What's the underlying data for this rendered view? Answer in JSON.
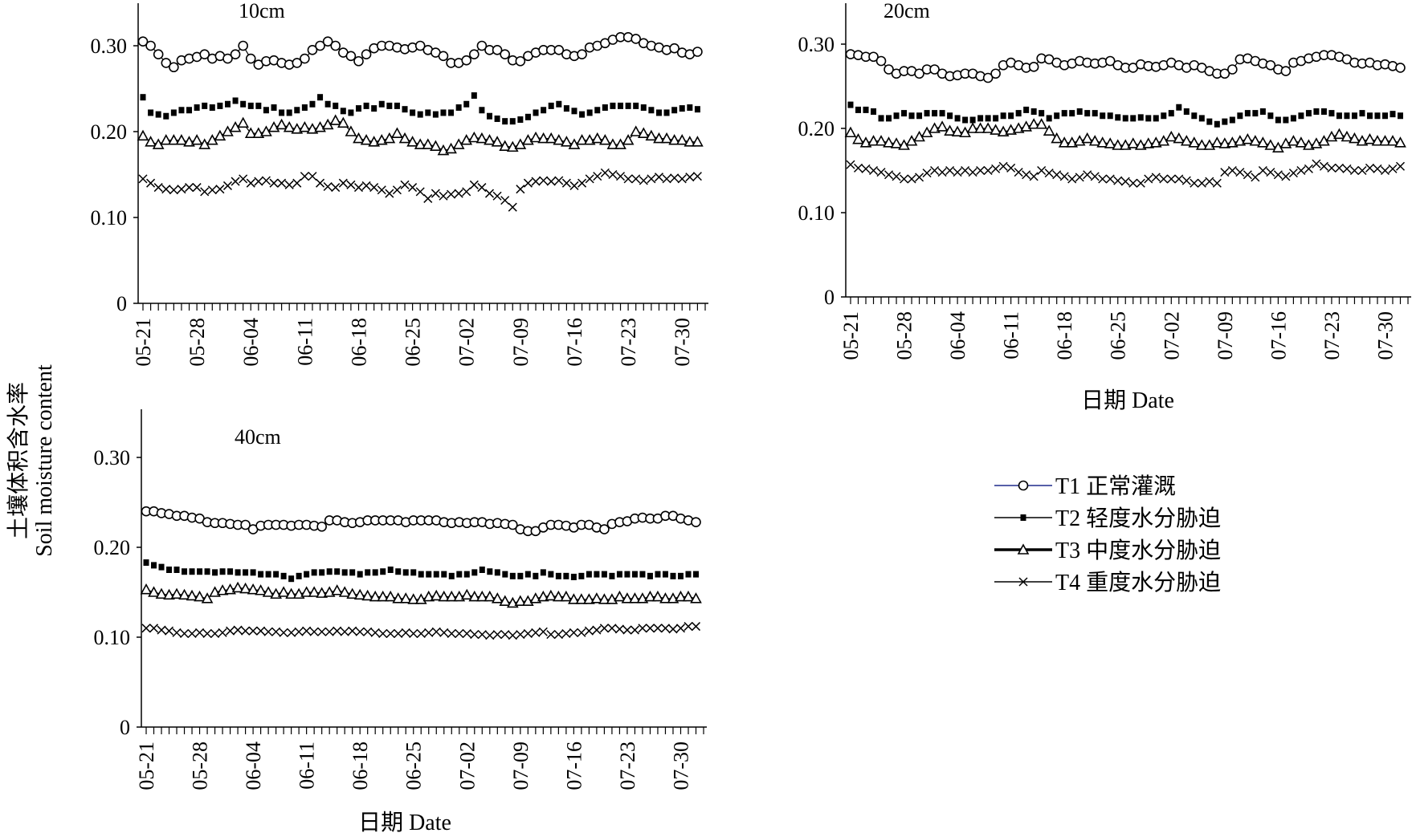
{
  "figure": {
    "ylabel_cn": "土壤体积含水率",
    "ylabel_en": "Soil moisture content",
    "xlabel": "日期 Date"
  },
  "legend": [
    {
      "key": "T1",
      "label": "T1 正常灌溉",
      "marker": "circle",
      "line_color": "#1f2a8c"
    },
    {
      "key": "T2",
      "label": "T2 轻度水分胁迫",
      "marker": "square",
      "line_color": "#000000"
    },
    {
      "key": "T3",
      "label": "T3 中度水分胁迫",
      "marker": "triangle",
      "line_color": "#000000"
    },
    {
      "key": "T4",
      "label": "T4 重度水分胁迫",
      "marker": "cross",
      "line_color": "#000000"
    }
  ],
  "chart_data": [
    {
      "type": "line",
      "title": "10cm",
      "xlabel": "",
      "x_tick_labels": [
        "05-21",
        "05-28",
        "06-04",
        "06-11",
        "06-18",
        "06-25",
        "07-02",
        "07-09",
        "07-16",
        "07-23",
        "07-30"
      ],
      "y_tick_labels": [
        "0",
        "0.10",
        "0.20",
        "0.30"
      ],
      "ylim": [
        0,
        0.35
      ],
      "x_range_days": [
        0,
        73
      ],
      "series": [
        {
          "name": "T1 正常灌溉",
          "key": "T1",
          "values": [
            0.305,
            0.3,
            0.29,
            0.28,
            0.275,
            0.283,
            0.285,
            0.287,
            0.29,
            0.285,
            0.288,
            0.285,
            0.29,
            0.3,
            0.285,
            0.278,
            0.282,
            0.283,
            0.28,
            0.278,
            0.28,
            0.285,
            0.295,
            0.3,
            0.305,
            0.3,
            0.292,
            0.288,
            0.282,
            0.29,
            0.297,
            0.3,
            0.3,
            0.298,
            0.296,
            0.298,
            0.3,
            0.295,
            0.292,
            0.288,
            0.28,
            0.28,
            0.283,
            0.29,
            0.3,
            0.295,
            0.295,
            0.29,
            0.283,
            0.282,
            0.288,
            0.292,
            0.295,
            0.295,
            0.295,
            0.29,
            0.288,
            0.29,
            0.298,
            0.3,
            0.303,
            0.307,
            0.31,
            0.31,
            0.308,
            0.303,
            0.3,
            0.298,
            0.295,
            0.297,
            0.292,
            0.29,
            0.293
          ]
        },
        {
          "name": "T2 轻度水分胁迫",
          "key": "T2",
          "values": [
            0.24,
            0.222,
            0.22,
            0.218,
            0.222,
            0.225,
            0.225,
            0.228,
            0.23,
            0.228,
            0.23,
            0.232,
            0.236,
            0.232,
            0.23,
            0.23,
            0.225,
            0.228,
            0.222,
            0.222,
            0.225,
            0.228,
            0.232,
            0.24,
            0.232,
            0.23,
            0.224,
            0.222,
            0.227,
            0.23,
            0.227,
            0.232,
            0.23,
            0.23,
            0.226,
            0.222,
            0.22,
            0.222,
            0.22,
            0.222,
            0.222,
            0.228,
            0.232,
            0.242,
            0.225,
            0.218,
            0.215,
            0.212,
            0.212,
            0.214,
            0.217,
            0.222,
            0.225,
            0.23,
            0.232,
            0.227,
            0.224,
            0.22,
            0.222,
            0.225,
            0.228,
            0.23,
            0.23,
            0.23,
            0.23,
            0.228,
            0.225,
            0.222,
            0.222,
            0.225,
            0.227,
            0.228,
            0.226
          ]
        },
        {
          "name": "T3 中度水分胁迫",
          "key": "T3",
          "values": [
            0.195,
            0.188,
            0.185,
            0.19,
            0.19,
            0.19,
            0.188,
            0.19,
            0.185,
            0.19,
            0.195,
            0.2,
            0.205,
            0.21,
            0.198,
            0.198,
            0.2,
            0.205,
            0.208,
            0.205,
            0.203,
            0.205,
            0.203,
            0.205,
            0.208,
            0.213,
            0.21,
            0.2,
            0.192,
            0.19,
            0.188,
            0.19,
            0.192,
            0.198,
            0.192,
            0.188,
            0.185,
            0.185,
            0.183,
            0.178,
            0.18,
            0.185,
            0.19,
            0.193,
            0.192,
            0.19,
            0.188,
            0.183,
            0.182,
            0.185,
            0.19,
            0.193,
            0.192,
            0.192,
            0.19,
            0.188,
            0.185,
            0.19,
            0.19,
            0.192,
            0.19,
            0.185,
            0.185,
            0.19,
            0.2,
            0.198,
            0.195,
            0.192,
            0.192,
            0.19,
            0.19,
            0.188,
            0.188
          ]
        },
        {
          "name": "T4 重度水分胁迫",
          "key": "T4",
          "values": [
            0.145,
            0.14,
            0.135,
            0.133,
            0.132,
            0.133,
            0.135,
            0.135,
            0.13,
            0.132,
            0.133,
            0.137,
            0.142,
            0.145,
            0.14,
            0.142,
            0.143,
            0.14,
            0.14,
            0.138,
            0.14,
            0.148,
            0.148,
            0.14,
            0.136,
            0.135,
            0.14,
            0.138,
            0.135,
            0.137,
            0.135,
            0.132,
            0.128,
            0.132,
            0.138,
            0.135,
            0.13,
            0.122,
            0.128,
            0.125,
            0.127,
            0.128,
            0.13,
            0.138,
            0.135,
            0.128,
            0.125,
            0.12,
            0.112,
            0.133,
            0.14,
            0.142,
            0.143,
            0.142,
            0.143,
            0.14,
            0.137,
            0.14,
            0.145,
            0.148,
            0.152,
            0.15,
            0.148,
            0.145,
            0.145,
            0.143,
            0.145,
            0.147,
            0.145,
            0.146,
            0.145,
            0.147,
            0.148
          ]
        }
      ]
    },
    {
      "type": "line",
      "title": "20cm",
      "xlabel": "日期 Date",
      "x_tick_labels": [
        "05-21",
        "05-28",
        "06-04",
        "06-11",
        "06-18",
        "06-25",
        "07-02",
        "07-09",
        "07-16",
        "07-23",
        "07-30"
      ],
      "y_tick_labels": [
        "0",
        "0.10",
        "0.20",
        "0.30"
      ],
      "ylim": [
        0,
        0.35
      ],
      "x_range_days": [
        0,
        73
      ],
      "series": [
        {
          "name": "T1 正常灌溉",
          "key": "T1",
          "values": [
            0.288,
            0.287,
            0.285,
            0.285,
            0.28,
            0.27,
            0.265,
            0.268,
            0.268,
            0.265,
            0.27,
            0.27,
            0.265,
            0.262,
            0.263,
            0.265,
            0.265,
            0.262,
            0.26,
            0.265,
            0.275,
            0.278,
            0.275,
            0.272,
            0.273,
            0.283,
            0.282,
            0.278,
            0.275,
            0.277,
            0.28,
            0.278,
            0.277,
            0.278,
            0.28,
            0.275,
            0.272,
            0.272,
            0.276,
            0.274,
            0.273,
            0.275,
            0.278,
            0.275,
            0.272,
            0.275,
            0.272,
            0.268,
            0.265,
            0.265,
            0.27,
            0.282,
            0.283,
            0.28,
            0.277,
            0.275,
            0.27,
            0.268,
            0.278,
            0.28,
            0.283,
            0.285,
            0.287,
            0.287,
            0.285,
            0.282,
            0.278,
            0.277,
            0.278,
            0.275,
            0.276,
            0.274,
            0.272
          ]
        },
        {
          "name": "T2 轻度水分胁迫",
          "key": "T2",
          "values": [
            0.228,
            0.222,
            0.222,
            0.22,
            0.212,
            0.212,
            0.215,
            0.218,
            0.215,
            0.215,
            0.218,
            0.218,
            0.218,
            0.215,
            0.212,
            0.21,
            0.21,
            0.212,
            0.212,
            0.212,
            0.215,
            0.215,
            0.218,
            0.222,
            0.22,
            0.218,
            0.212,
            0.215,
            0.218,
            0.218,
            0.22,
            0.218,
            0.218,
            0.215,
            0.215,
            0.213,
            0.212,
            0.212,
            0.213,
            0.212,
            0.212,
            0.215,
            0.218,
            0.225,
            0.22,
            0.215,
            0.212,
            0.208,
            0.205,
            0.208,
            0.21,
            0.215,
            0.218,
            0.218,
            0.22,
            0.215,
            0.21,
            0.21,
            0.212,
            0.215,
            0.218,
            0.22,
            0.22,
            0.218,
            0.215,
            0.215,
            0.215,
            0.218,
            0.215,
            0.215,
            0.215,
            0.217,
            0.215
          ]
        },
        {
          "name": "T3 中度水分胁迫",
          "key": "T3",
          "values": [
            0.195,
            0.187,
            0.183,
            0.185,
            0.185,
            0.183,
            0.182,
            0.18,
            0.185,
            0.19,
            0.195,
            0.2,
            0.202,
            0.197,
            0.196,
            0.195,
            0.2,
            0.2,
            0.2,
            0.198,
            0.196,
            0.198,
            0.2,
            0.202,
            0.205,
            0.205,
            0.197,
            0.188,
            0.183,
            0.183,
            0.185,
            0.188,
            0.185,
            0.183,
            0.182,
            0.18,
            0.18,
            0.182,
            0.18,
            0.182,
            0.183,
            0.185,
            0.19,
            0.188,
            0.185,
            0.183,
            0.18,
            0.18,
            0.183,
            0.182,
            0.183,
            0.185,
            0.187,
            0.185,
            0.183,
            0.18,
            0.177,
            0.182,
            0.185,
            0.183,
            0.18,
            0.182,
            0.185,
            0.19,
            0.193,
            0.19,
            0.188,
            0.185,
            0.187,
            0.185,
            0.185,
            0.185,
            0.183
          ]
        },
        {
          "name": "T4 重度水分胁迫",
          "key": "T4",
          "values": [
            0.157,
            0.153,
            0.152,
            0.15,
            0.148,
            0.145,
            0.143,
            0.14,
            0.14,
            0.142,
            0.147,
            0.15,
            0.148,
            0.15,
            0.148,
            0.15,
            0.148,
            0.15,
            0.15,
            0.152,
            0.155,
            0.153,
            0.148,
            0.145,
            0.143,
            0.15,
            0.147,
            0.145,
            0.143,
            0.14,
            0.142,
            0.145,
            0.143,
            0.14,
            0.14,
            0.138,
            0.137,
            0.135,
            0.135,
            0.14,
            0.142,
            0.14,
            0.14,
            0.14,
            0.138,
            0.135,
            0.135,
            0.137,
            0.135,
            0.148,
            0.15,
            0.148,
            0.145,
            0.142,
            0.15,
            0.148,
            0.145,
            0.143,
            0.147,
            0.15,
            0.152,
            0.158,
            0.155,
            0.153,
            0.153,
            0.152,
            0.15,
            0.15,
            0.153,
            0.152,
            0.15,
            0.152,
            0.155
          ]
        }
      ]
    },
    {
      "type": "line",
      "title": "40cm",
      "xlabel": "日期 Date",
      "x_tick_labels": [
        "05-21",
        "05-28",
        "06-04",
        "06-11",
        "06-18",
        "06-25",
        "07-02",
        "07-09",
        "07-16",
        "07-23",
        "07-30"
      ],
      "y_tick_labels": [
        "0",
        "0.10",
        "0.20",
        "0.30"
      ],
      "ylim": [
        0,
        0.35
      ],
      "x_range_days": [
        0,
        73
      ],
      "series": [
        {
          "name": "T1 正常灌溉",
          "key": "T1",
          "values": [
            0.24,
            0.24,
            0.238,
            0.237,
            0.235,
            0.235,
            0.233,
            0.232,
            0.228,
            0.227,
            0.227,
            0.226,
            0.225,
            0.225,
            0.22,
            0.224,
            0.225,
            0.225,
            0.225,
            0.224,
            0.225,
            0.225,
            0.224,
            0.223,
            0.23,
            0.23,
            0.228,
            0.227,
            0.228,
            0.23,
            0.23,
            0.23,
            0.23,
            0.23,
            0.228,
            0.23,
            0.23,
            0.23,
            0.23,
            0.228,
            0.227,
            0.228,
            0.227,
            0.228,
            0.228,
            0.226,
            0.227,
            0.226,
            0.225,
            0.22,
            0.218,
            0.218,
            0.222,
            0.225,
            0.225,
            0.224,
            0.222,
            0.225,
            0.225,
            0.222,
            0.22,
            0.226,
            0.228,
            0.229,
            0.232,
            0.233,
            0.232,
            0.232,
            0.235,
            0.235,
            0.232,
            0.23,
            0.228
          ]
        },
        {
          "name": "T2 轻度水分胁迫",
          "key": "T2",
          "values": [
            0.183,
            0.18,
            0.178,
            0.175,
            0.175,
            0.173,
            0.173,
            0.173,
            0.173,
            0.172,
            0.173,
            0.173,
            0.172,
            0.172,
            0.172,
            0.17,
            0.17,
            0.17,
            0.168,
            0.165,
            0.168,
            0.17,
            0.172,
            0.172,
            0.173,
            0.173,
            0.172,
            0.172,
            0.17,
            0.172,
            0.172,
            0.173,
            0.175,
            0.173,
            0.172,
            0.172,
            0.17,
            0.17,
            0.17,
            0.17,
            0.168,
            0.17,
            0.17,
            0.172,
            0.175,
            0.173,
            0.172,
            0.17,
            0.168,
            0.168,
            0.17,
            0.168,
            0.172,
            0.17,
            0.168,
            0.168,
            0.167,
            0.168,
            0.17,
            0.17,
            0.17,
            0.168,
            0.17,
            0.17,
            0.17,
            0.17,
            0.168,
            0.17,
            0.17,
            0.168,
            0.168,
            0.17,
            0.17
          ]
        },
        {
          "name": "T3 中度水分胁迫",
          "key": "T3",
          "values": [
            0.153,
            0.15,
            0.148,
            0.147,
            0.148,
            0.147,
            0.146,
            0.145,
            0.143,
            0.15,
            0.152,
            0.153,
            0.155,
            0.154,
            0.153,
            0.152,
            0.15,
            0.148,
            0.15,
            0.148,
            0.148,
            0.15,
            0.15,
            0.149,
            0.15,
            0.152,
            0.15,
            0.148,
            0.147,
            0.146,
            0.145,
            0.145,
            0.145,
            0.143,
            0.143,
            0.142,
            0.142,
            0.145,
            0.146,
            0.145,
            0.145,
            0.145,
            0.147,
            0.145,
            0.145,
            0.145,
            0.143,
            0.14,
            0.138,
            0.14,
            0.14,
            0.143,
            0.145,
            0.146,
            0.145,
            0.145,
            0.142,
            0.142,
            0.142,
            0.143,
            0.142,
            0.142,
            0.145,
            0.143,
            0.143,
            0.143,
            0.145,
            0.145,
            0.143,
            0.143,
            0.145,
            0.145,
            0.143
          ]
        },
        {
          "name": "T4 重度水分胁迫",
          "key": "T4",
          "values": [
            0.11,
            0.11,
            0.108,
            0.107,
            0.105,
            0.104,
            0.104,
            0.105,
            0.104,
            0.104,
            0.105,
            0.107,
            0.108,
            0.107,
            0.107,
            0.107,
            0.106,
            0.106,
            0.105,
            0.105,
            0.106,
            0.107,
            0.106,
            0.106,
            0.106,
            0.107,
            0.106,
            0.107,
            0.106,
            0.106,
            0.105,
            0.104,
            0.104,
            0.104,
            0.105,
            0.104,
            0.104,
            0.105,
            0.106,
            0.105,
            0.104,
            0.104,
            0.104,
            0.103,
            0.103,
            0.102,
            0.103,
            0.103,
            0.102,
            0.103,
            0.104,
            0.105,
            0.106,
            0.103,
            0.103,
            0.104,
            0.105,
            0.105,
            0.107,
            0.108,
            0.11,
            0.11,
            0.109,
            0.108,
            0.108,
            0.11,
            0.11,
            0.11,
            0.11,
            0.109,
            0.11,
            0.112,
            0.112
          ]
        }
      ]
    }
  ]
}
